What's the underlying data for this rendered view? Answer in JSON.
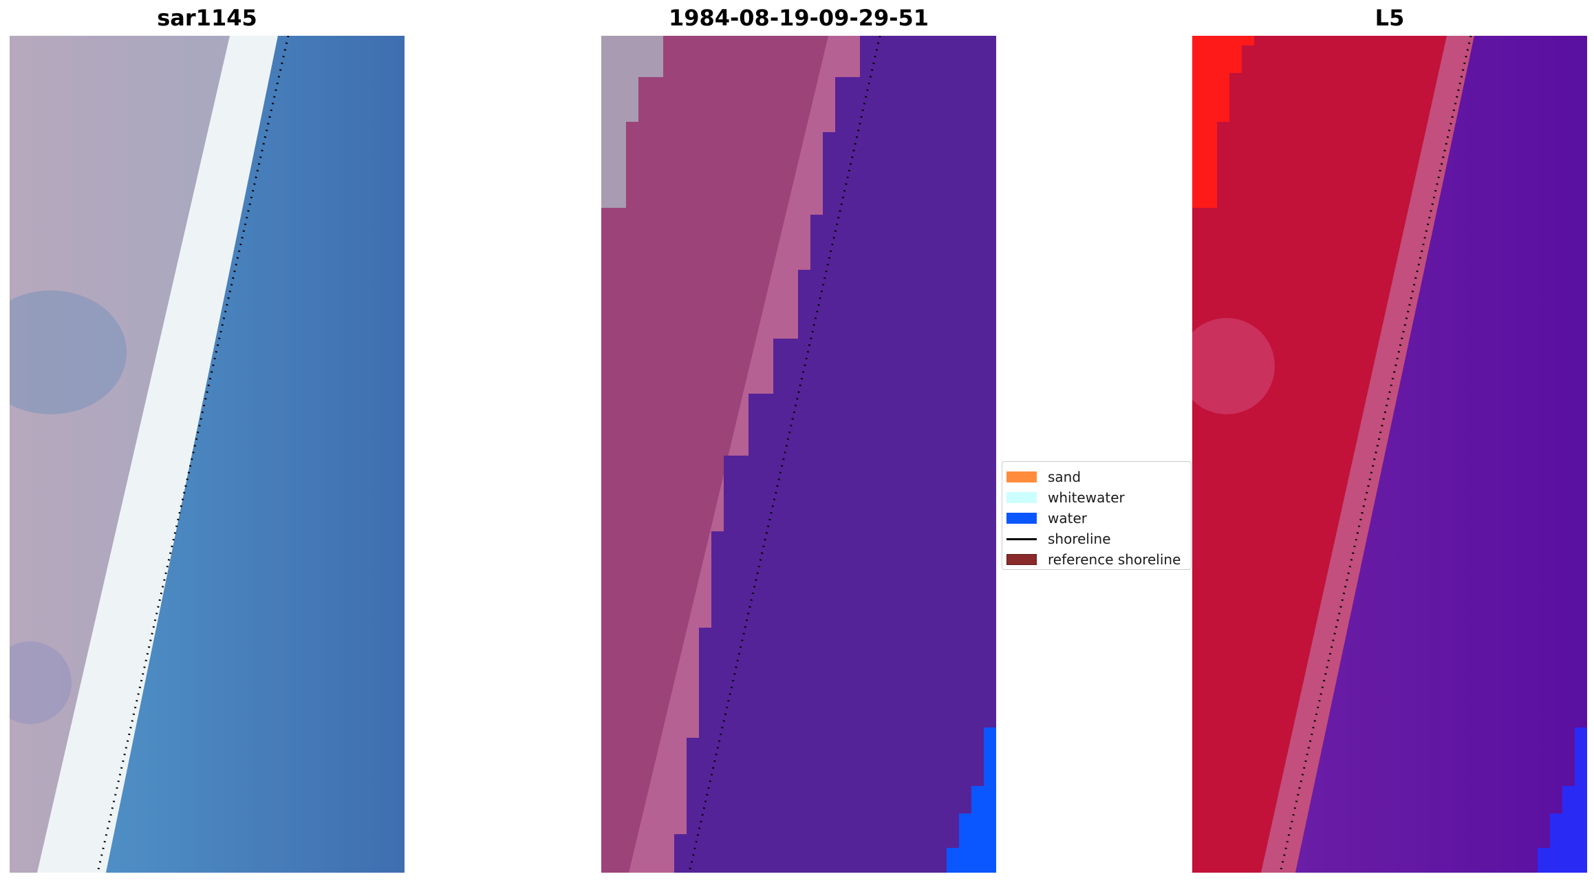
{
  "panels": [
    {
      "title": "sar1145"
    },
    {
      "title": "1984-08-19-09-29-51"
    },
    {
      "title": "L5"
    }
  ],
  "legend": {
    "items": [
      {
        "label": "sand",
        "color": "#ff8c3c",
        "kind": "patch"
      },
      {
        "label": "whitewater",
        "color": "#ccffff",
        "kind": "patch"
      },
      {
        "label": "water",
        "color": "#0a56ff",
        "kind": "patch"
      },
      {
        "label": "shoreline",
        "color": "#000000",
        "kind": "line"
      },
      {
        "label": "reference shoreline",
        "color": "#8b2a2a",
        "kind": "patch"
      }
    ]
  },
  "colors": {
    "rgb_sand": "#b9acc2",
    "rgb_white": "#f2f6f8",
    "rgb_water": "#4a89c2",
    "class_sand": "#9c437a",
    "class_water": "#552398",
    "class_deep_water": "#0a56ff",
    "ndwi_land": "#c2123a",
    "ndwi_water": "#5a0fa0",
    "ndwi_bright": "#ff1a1a"
  }
}
